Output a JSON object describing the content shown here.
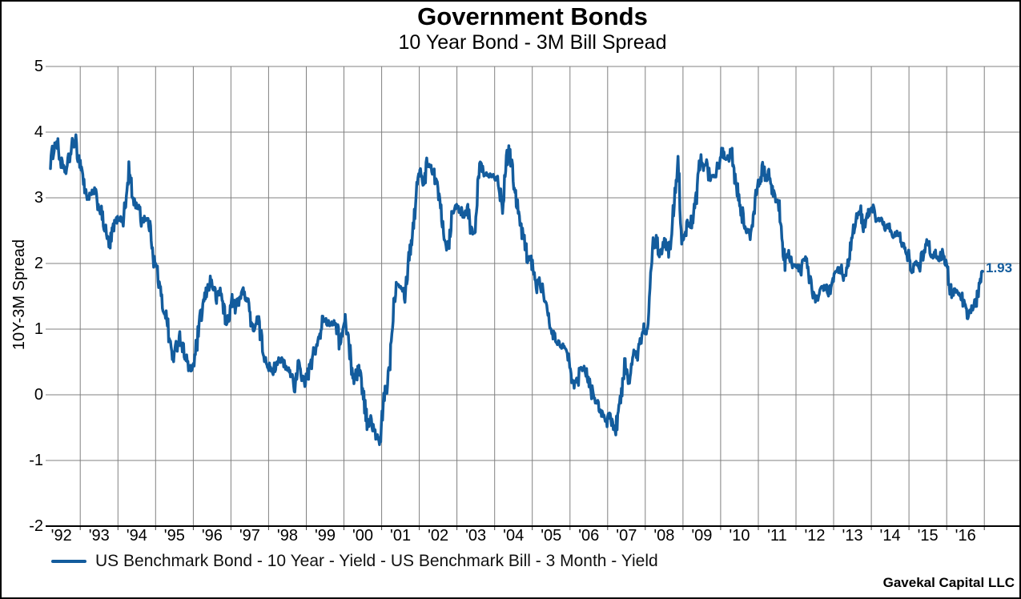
{
  "title": "Government Bonds",
  "subtitle": "10 Year Bond - 3M Bill Spread",
  "watermark": "Gavekal Capital LLC",
  "annotation": {
    "label": "1.93",
    "value": 1.93
  },
  "legend": {
    "label": "US Benchmark Bond - 10 Year - Yield - US Benchmark Bill - 3 Month - Yield"
  },
  "colors": {
    "line": "#135C9D",
    "grid": "#808080",
    "axis": "#000000",
    "tick": "#404040",
    "annotation": "#135C9D"
  },
  "y_axis": {
    "label": "10Y-3M Spread",
    "ticks": [
      "5",
      "4",
      "3",
      "2",
      "1",
      "0",
      "-1",
      "-2"
    ]
  },
  "x_axis": {
    "labels": [
      "'92",
      "'93",
      "'94",
      "'95",
      "'96",
      "'97",
      "'98",
      "'99",
      "'00",
      "'01",
      "'02",
      "'03",
      "'04",
      "'05",
      "'06",
      "'07",
      "'08",
      "'09",
      "'10",
      "'11",
      "'12",
      "'13",
      "'14",
      "'15",
      "'16"
    ]
  },
  "chart_data": {
    "type": "line",
    "title": "Government Bonds",
    "subtitle": "10 Year Bond - 3M Bill Spread",
    "xlabel": "",
    "ylabel": "10Y-3M Spread",
    "ylim": [
      -2,
      5
    ],
    "x_tick_labels": [
      "'92",
      "'93",
      "'94",
      "'95",
      "'96",
      "'97",
      "'98",
      "'99",
      "'00",
      "'01",
      "'02",
      "'03",
      "'04",
      "'05",
      "'06",
      "'07",
      "'08",
      "'09",
      "'10",
      "'11",
      "'12",
      "'13",
      "'14",
      "'15",
      "'16"
    ],
    "grid": true,
    "legend_position": "bottom-left",
    "source_note": "Gavekal Capital LLC",
    "series": [
      {
        "name": "US Benchmark Bond - 10 Year - Yield - US Benchmark Bill - 3 Month - Yield",
        "frequency": "monthly",
        "start": "1992-03",
        "end": "2016-12",
        "last_value_label": 1.93,
        "values": [
          3.55,
          3.75,
          3.85,
          3.6,
          3.45,
          3.4,
          3.6,
          3.8,
          3.85,
          3.6,
          3.45,
          3.1,
          3.0,
          3.05,
          3.1,
          2.9,
          2.8,
          2.6,
          2.4,
          2.25,
          2.55,
          2.65,
          2.7,
          2.65,
          2.9,
          3.45,
          3.05,
          2.9,
          2.85,
          2.65,
          2.7,
          2.65,
          2.5,
          2.05,
          1.9,
          1.55,
          1.3,
          1.2,
          0.8,
          0.55,
          0.7,
          0.92,
          0.75,
          0.6,
          0.42,
          0.38,
          0.55,
          0.9,
          1.2,
          1.45,
          1.6,
          1.75,
          1.62,
          1.45,
          1.6,
          1.4,
          1.05,
          1.25,
          1.45,
          1.3,
          1.45,
          1.6,
          1.5,
          1.45,
          1.05,
          1.0,
          1.15,
          0.9,
          0.6,
          0.5,
          0.38,
          0.35,
          0.5,
          0.55,
          0.5,
          0.4,
          0.38,
          0.28,
          0.1,
          0.45,
          0.3,
          0.18,
          0.3,
          0.45,
          0.65,
          0.78,
          0.9,
          1.18,
          1.1,
          1.08,
          1.1,
          1.1,
          0.8,
          0.92,
          1.15,
          0.8,
          0.42,
          0.2,
          0.45,
          0.25,
          -0.1,
          -0.45,
          -0.38,
          -0.55,
          -0.65,
          -0.78,
          -0.15,
          0.1,
          0.4,
          1.15,
          1.7,
          1.7,
          1.65,
          1.5,
          2.05,
          2.35,
          2.75,
          3.35,
          3.4,
          3.2,
          3.5,
          3.5,
          3.4,
          3.2,
          3.0,
          2.65,
          2.25,
          2.35,
          2.8,
          2.85,
          2.9,
          2.75,
          2.7,
          2.85,
          2.5,
          2.4,
          3.1,
          3.55,
          3.35,
          3.4,
          3.35,
          3.35,
          3.3,
          3.15,
          2.9,
          3.4,
          3.8,
          3.5,
          3.15,
          2.8,
          2.5,
          2.35,
          2.1,
          2.05,
          1.9,
          1.65,
          1.75,
          1.55,
          1.3,
          1.05,
          0.95,
          0.82,
          0.78,
          0.75,
          0.65,
          0.58,
          0.2,
          0.15,
          0.22,
          0.4,
          0.42,
          0.3,
          0.15,
          -0.08,
          -0.1,
          -0.2,
          -0.35,
          -0.5,
          -0.3,
          -0.45,
          -0.55,
          -0.2,
          0.0,
          0.5,
          0.2,
          0.45,
          0.63,
          0.6,
          0.8,
          1.03,
          0.95,
          1.6,
          2.25,
          2.35,
          2.15,
          2.2,
          2.35,
          2.15,
          2.55,
          3.15,
          3.65,
          2.25,
          2.4,
          2.6,
          2.58,
          2.8,
          3.1,
          3.6,
          3.45,
          3.5,
          3.3,
          3.35,
          3.35,
          3.55,
          3.7,
          3.6,
          3.62,
          3.78,
          3.35,
          3.1,
          2.85,
          2.55,
          2.5,
          2.42,
          2.65,
          3.15,
          3.25,
          3.45,
          3.3,
          3.4,
          3.15,
          2.95,
          2.95,
          2.3,
          2.0,
          2.15,
          2.0,
          1.95,
          1.95,
          1.9,
          2.1,
          2.0,
          1.72,
          1.55,
          1.45,
          1.6,
          1.62,
          1.65,
          1.55,
          1.68,
          1.85,
          1.9,
          1.87,
          1.7,
          1.9,
          2.25,
          2.55,
          2.7,
          2.8,
          2.57,
          2.65,
          2.85,
          2.82,
          2.66,
          2.68,
          2.66,
          2.54,
          2.56,
          2.5,
          2.4,
          2.5,
          2.28,
          2.3,
          2.18,
          1.86,
          1.96,
          2.0,
          1.92,
          2.18,
          2.34,
          2.29,
          2.1,
          2.15,
          2.05,
          2.14,
          2.0,
          1.84,
          1.5,
          1.6,
          1.58,
          1.54,
          1.38,
          1.2,
          1.26,
          1.34,
          1.45,
          1.75,
          1.93
        ]
      }
    ]
  }
}
